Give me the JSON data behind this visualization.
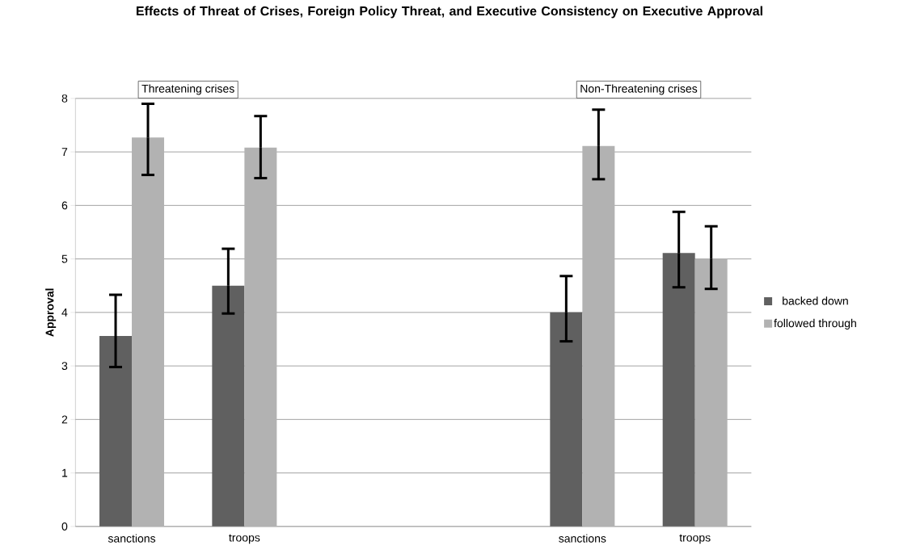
{
  "chart_data": {
    "type": "bar",
    "title": "Effects of Threat of Crises, Foreign Policy Threat, and Executive Consistency on Executive Approval",
    "ylabel": "Approval",
    "categories": [
      "sanctions",
      "troops",
      null,
      null,
      "sanctions",
      "troops"
    ],
    "series": [
      {
        "name": "backed down",
        "color": "#606060",
        "values": [
          3.56,
          4.5,
          null,
          null,
          4.0,
          5.11
        ],
        "errors": [
          [
            2.98,
            4.33
          ],
          [
            3.98,
            5.19
          ],
          null,
          null,
          [
            3.46,
            4.68
          ],
          [
            4.47,
            5.88
          ]
        ]
      },
      {
        "name": "followed through",
        "color": "#b2b2b2",
        "values": [
          7.27,
          7.08,
          null,
          null,
          7.11,
          5.0
        ],
        "errors": [
          [
            6.57,
            7.9
          ],
          [
            6.51,
            7.67
          ],
          null,
          null,
          [
            6.49,
            7.79
          ],
          [
            4.44,
            5.61
          ]
        ]
      }
    ],
    "annotations": [
      "Threatening crises",
      "Non-Threatening crises"
    ],
    "ylim": [
      0,
      8
    ],
    "yticks": [
      0,
      1,
      2,
      3,
      4,
      5,
      6,
      7,
      8
    ],
    "grid": "y",
    "legend": "right"
  }
}
